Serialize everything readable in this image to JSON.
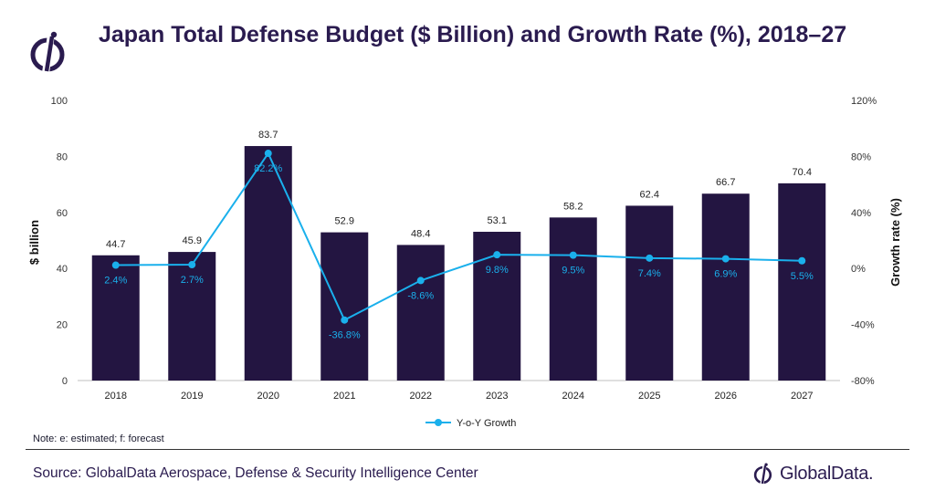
{
  "title": "Japan Total Defense Budget ($ Billion) and Growth Rate (%), 2018–27",
  "note": "Note: e: estimated; f: forecast",
  "source": "Source: GlobalData Aerospace, Defense & Security Intelligence Center",
  "brand": "GlobalData.",
  "colors": {
    "bar": "#231541",
    "line": "#1ab0ec",
    "title": "#2a1b4f"
  },
  "chart_data": {
    "type": "bar+line",
    "categories": [
      "2018",
      "2019",
      "2020",
      "2021",
      "2022",
      "2023",
      "2024",
      "2025",
      "2026",
      "2027"
    ],
    "series": [
      {
        "name": "Defense Budget",
        "axis": "left",
        "type": "bar",
        "values": [
          44.7,
          45.9,
          83.7,
          52.9,
          48.4,
          53.1,
          58.2,
          62.4,
          66.7,
          70.4
        ],
        "labels": [
          "44.7",
          "45.9",
          "83.7",
          "52.9",
          "48.4",
          "53.1",
          "58.2",
          "62.4",
          "66.7",
          "70.4"
        ]
      },
      {
        "name": "Y-o-Y Growth",
        "axis": "right",
        "type": "line",
        "values": [
          2.4,
          2.7,
          82.2,
          -36.8,
          -8.6,
          9.8,
          9.5,
          7.4,
          6.9,
          5.5
        ],
        "labels": [
          "2.4%",
          "2.7%",
          "82.2%",
          "-36.8%",
          "-8.6%",
          "9.8%",
          "9.5%",
          "7.4%",
          "6.9%",
          "5.5%"
        ]
      }
    ],
    "ylabel": "$ billion",
    "y2label": "Growth rate (%)",
    "ylim": [
      0,
      100
    ],
    "y2lim": [
      -80,
      120
    ],
    "yticks": [
      "0",
      "20",
      "40",
      "60",
      "80",
      "100"
    ],
    "y2ticks": [
      "-80%",
      "-40%",
      "0%",
      "40%",
      "80%",
      "120%"
    ],
    "legend": "Y-o-Y Growth"
  }
}
